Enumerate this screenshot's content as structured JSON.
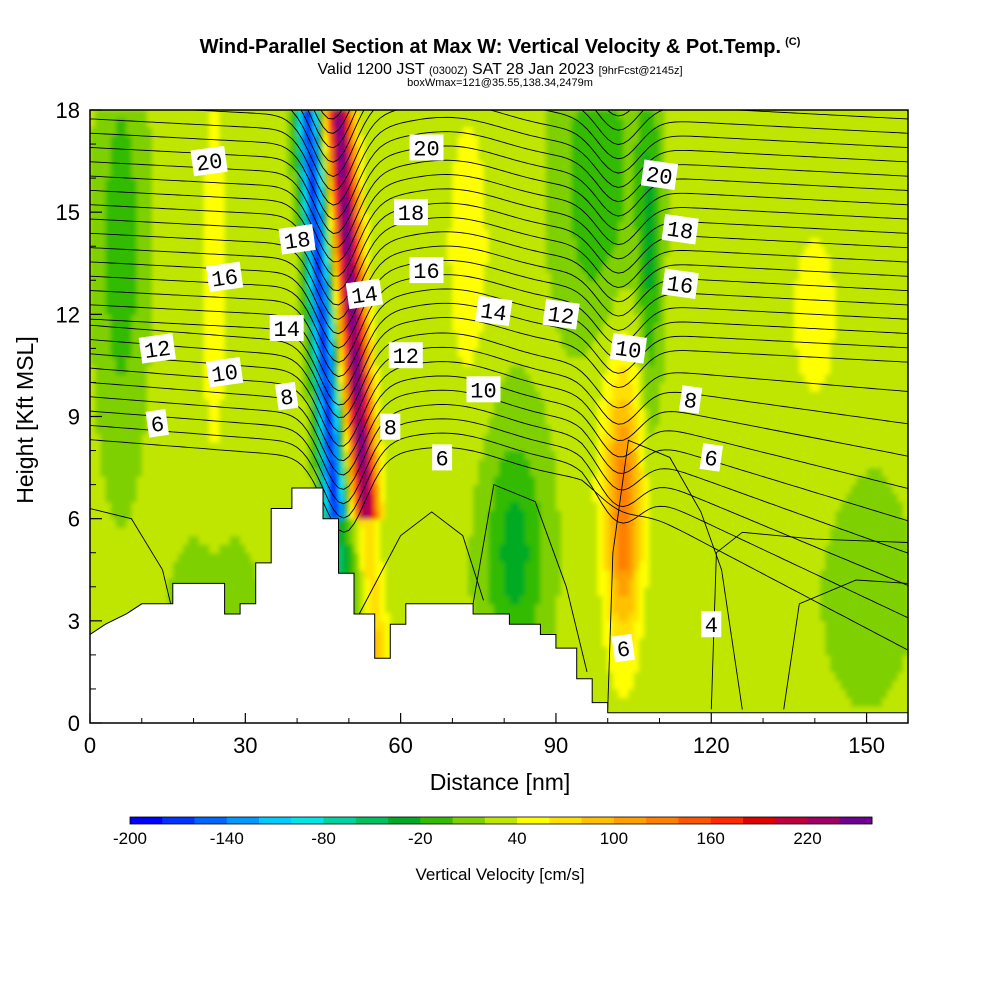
{
  "header": {
    "title": "Wind-Parallel Section at Max W: Vertical Velocity & Pot.Temp.",
    "copyright": "(C)",
    "valid_prefix": "Valid 1200 JST",
    "valid_utc": "(0300Z)",
    "valid_date": "SAT 28 Jan 2023",
    "forecast": "[9hrFcst@2145z]",
    "box_info": "boxWmax=121@35.55,138.34,2479m"
  },
  "chart_data": {
    "type": "heatmap",
    "xlabel": "Distance [nm]",
    "ylabel": "Height [Kft MSL]",
    "xlim": [
      0,
      158
    ],
    "ylim": [
      0,
      18
    ],
    "x_ticks": [
      0,
      30,
      60,
      90,
      120,
      150
    ],
    "y_ticks": [
      0,
      3,
      6,
      9,
      12,
      15,
      18
    ],
    "terrain_profile": [
      [
        0,
        2.6
      ],
      [
        3,
        2.9
      ],
      [
        7,
        3.2
      ],
      [
        10,
        3.5
      ],
      [
        16,
        3.5
      ],
      [
        16,
        4.1
      ],
      [
        26,
        4.1
      ],
      [
        26,
        3.2
      ],
      [
        29,
        3.2
      ],
      [
        29,
        3.5
      ],
      [
        32,
        3.5
      ],
      [
        32,
        4.7
      ],
      [
        35,
        4.7
      ],
      [
        35,
        6.3
      ],
      [
        39,
        6.3
      ],
      [
        39,
        6.9
      ],
      [
        45,
        6.9
      ],
      [
        45,
        6.0
      ],
      [
        48,
        6.0
      ],
      [
        48,
        4.4
      ],
      [
        51,
        4.4
      ],
      [
        51,
        3.2
      ],
      [
        55,
        3.2
      ],
      [
        55,
        1.9
      ],
      [
        58,
        1.9
      ],
      [
        58,
        2.9
      ],
      [
        61,
        2.9
      ],
      [
        61,
        3.5
      ],
      [
        74,
        3.5
      ],
      [
        74,
        3.2
      ],
      [
        81,
        3.2
      ],
      [
        81,
        2.9
      ],
      [
        87,
        2.9
      ],
      [
        87,
        2.6
      ],
      [
        90,
        2.6
      ],
      [
        90,
        2.2
      ],
      [
        94,
        2.2
      ],
      [
        94,
        1.3
      ],
      [
        97,
        1.3
      ],
      [
        97,
        0.6
      ],
      [
        100,
        0.6
      ],
      [
        100,
        0.3
      ],
      [
        158,
        0.3
      ]
    ],
    "vertical_velocity": {
      "colorbar_title": "Vertical Velocity [cm/s]",
      "colorbar_tick_labels": [
        "-200",
        "-140",
        "-80",
        "-20",
        "40",
        "100",
        "160",
        "220"
      ],
      "levels": [
        -200,
        -180,
        -160,
        -140,
        -120,
        -100,
        -80,
        -60,
        -40,
        -20,
        0,
        20,
        40,
        60,
        80,
        100,
        120,
        140,
        160,
        180,
        200,
        220,
        240
      ],
      "colors": [
        "#0000ff",
        "#0033ff",
        "#0066ff",
        "#0099ff",
        "#00ccff",
        "#00e5e5",
        "#00d4a0",
        "#00c060",
        "#00aa22",
        "#33bb00",
        "#7fd000",
        "#bfe600",
        "#ffff00",
        "#ffe000",
        "#ffc000",
        "#ff9f00",
        "#ff7f00",
        "#ff5500",
        "#ff2a00",
        "#e00000",
        "#c0003c",
        "#a00064",
        "#700090"
      ]
    },
    "potential_temperature_labels": [
      {
        "text": "20",
        "x": 23,
        "y": 16.5
      },
      {
        "text": "20",
        "x": 65,
        "y": 16.9
      },
      {
        "text": "20",
        "x": 110,
        "y": 16.1
      },
      {
        "text": "18",
        "x": 40,
        "y": 14.2
      },
      {
        "text": "18",
        "x": 62,
        "y": 15.0
      },
      {
        "text": "18",
        "x": 114,
        "y": 14.5
      },
      {
        "text": "16",
        "x": 26,
        "y": 13.1
      },
      {
        "text": "16",
        "x": 65,
        "y": 13.3
      },
      {
        "text": "16",
        "x": 114,
        "y": 12.9
      },
      {
        "text": "14",
        "x": 53,
        "y": 12.6
      },
      {
        "text": "14",
        "x": 38,
        "y": 11.6
      },
      {
        "text": "14",
        "x": 78,
        "y": 12.1
      },
      {
        "text": "12",
        "x": 13,
        "y": 11.0
      },
      {
        "text": "12",
        "x": 61,
        "y": 10.8
      },
      {
        "text": "12",
        "x": 91,
        "y": 12.0
      },
      {
        "text": "10",
        "x": 26,
        "y": 10.3
      },
      {
        "text": "10",
        "x": 76,
        "y": 9.8
      },
      {
        "text": "10",
        "x": 104,
        "y": 11.0
      },
      {
        "text": "8",
        "x": 38,
        "y": 9.6
      },
      {
        "text": "8",
        "x": 58,
        "y": 8.7
      },
      {
        "text": "8",
        "x": 116,
        "y": 9.5
      },
      {
        "text": "6",
        "x": 13,
        "y": 8.8
      },
      {
        "text": "6",
        "x": 68,
        "y": 7.8
      },
      {
        "text": "6",
        "x": 120,
        "y": 7.8
      },
      {
        "text": "6",
        "x": 103,
        "y": 2.2
      },
      {
        "text": "4",
        "x": 120,
        "y": 2.9
      }
    ]
  }
}
